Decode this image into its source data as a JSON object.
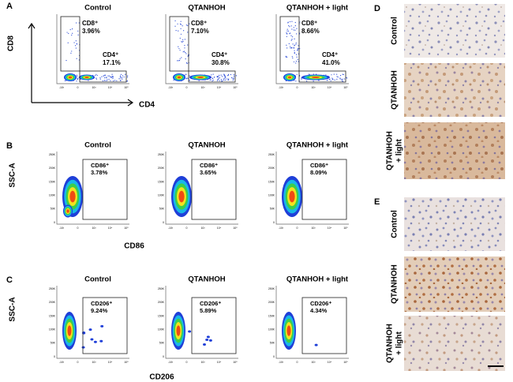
{
  "panels": [
    {
      "letter": "A",
      "x_label": "CD4",
      "y_label": "CD8",
      "plots": [
        {
          "title": "Control",
          "gates": [
            {
              "name": "CD8⁺",
              "percent": "3.96%"
            },
            {
              "name": "CD4⁺",
              "percent": "17.1%"
            }
          ]
        },
        {
          "title": "QTANHOH",
          "gates": [
            {
              "name": "CD8⁺",
              "percent": "7.10%"
            },
            {
              "name": "CD4⁺",
              "percent": "30.8%"
            }
          ]
        },
        {
          "title": "QTANHOH + light",
          "gates": [
            {
              "name": "CD8⁺",
              "percent": "8.66%"
            },
            {
              "name": "CD4⁺",
              "percent": "41.0%"
            }
          ]
        }
      ]
    },
    {
      "letter": "B",
      "x_label": "CD86",
      "y_label": "SSC-A",
      "plots": [
        {
          "title": "Control",
          "gates": [
            {
              "name": "CD86⁺",
              "percent": "3.78%"
            }
          ]
        },
        {
          "title": "QTANHOH",
          "gates": [
            {
              "name": "CD86⁺",
              "percent": "3.65%"
            }
          ]
        },
        {
          "title": "QTANHOH + light",
          "gates": [
            {
              "name": "CD86⁺",
              "percent": "8.09%"
            }
          ]
        }
      ]
    },
    {
      "letter": "C",
      "x_label": "CD206",
      "y_label": "SSC-A",
      "plots": [
        {
          "title": "Control",
          "gates": [
            {
              "name": "CD206⁺",
              "percent": "9.24%"
            }
          ]
        },
        {
          "title": "QTANHOH",
          "gates": [
            {
              "name": "CD206⁺",
              "percent": "5.89%"
            }
          ]
        },
        {
          "title": "QTANHOH + light",
          "gates": [
            {
              "name": "CD206⁺",
              "percent": "4.34%"
            }
          ]
        }
      ]
    }
  ],
  "axis_ticks": {
    "y": [
      "250K",
      "200K",
      "150K",
      "100K",
      "50K",
      "0"
    ],
    "x": [
      "-10³",
      "0",
      "10³",
      "10⁴",
      "10⁵"
    ]
  },
  "ihc": [
    {
      "letter": "D",
      "rows": [
        [
          "Control"
        ],
        [
          "QTANHOH"
        ],
        [
          "QTANHOH",
          "+ light"
        ]
      ]
    },
    {
      "letter": "E",
      "rows": [
        [
          "Control"
        ],
        [
          "QTANHOH"
        ],
        [
          "QTANHOH",
          "+ light"
        ]
      ]
    }
  ]
}
